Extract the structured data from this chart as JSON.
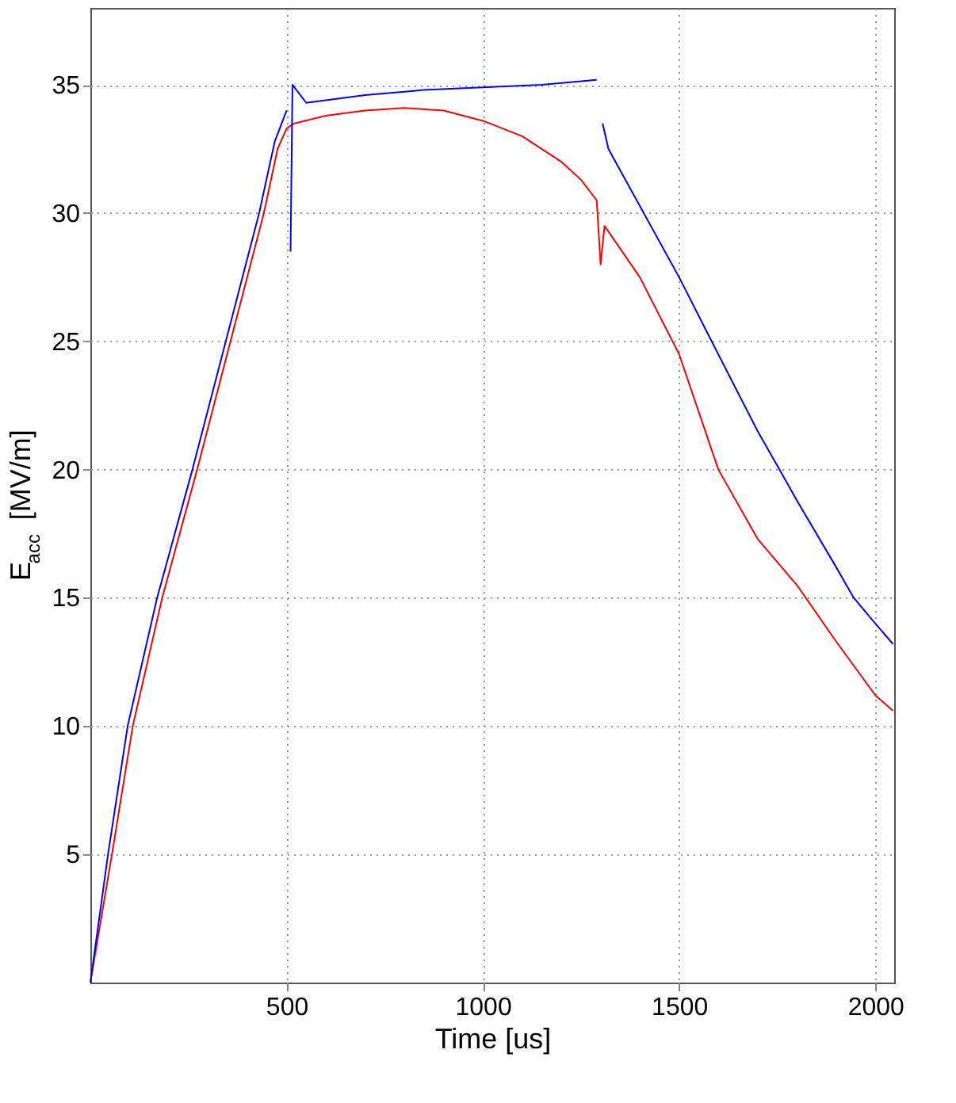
{
  "chart_data": {
    "type": "line",
    "xlabel": "Time [us]",
    "ylabel": "E$_{acc}$ [MV/m]",
    "xlim": [
      0,
      2048
    ],
    "ylim": [
      0,
      38
    ],
    "xticks": [
      500,
      1000,
      1500,
      2000
    ],
    "yticks": [
      5,
      10,
      15,
      20,
      25,
      30,
      35
    ],
    "grid": true,
    "legend": false,
    "marker": "none",
    "line_style": "solid",
    "series": [
      {
        "color": "#ff0000",
        "x": [
          0,
          55,
          108,
          183,
          272,
          357,
          442,
          477,
          500,
          520,
          600,
          700,
          800,
          900,
          1000,
          1100,
          1200,
          1250,
          1290,
          1300,
          1310,
          1400,
          1500,
          1600,
          1700,
          1800,
          1900,
          2000,
          2045
        ],
        "values": [
          0,
          5,
          10,
          15,
          20,
          25,
          30,
          32.5,
          33.3,
          33.5,
          33.8,
          34.0,
          34.1,
          34.0,
          33.6,
          33.0,
          32.0,
          31.3,
          30.5,
          28,
          29.5,
          27.5,
          24.5,
          20,
          17.3,
          15.5,
          13.3,
          11.2,
          10.6
        ]
      },
      {
        "color": "#0000ff",
        "x": [
          0,
          45,
          95,
          170,
          260,
          345,
          430,
          470,
          500,
          505,
          510,
          515,
          550,
          700,
          850,
          1000,
          1150,
          1290,
          1300,
          1305,
          1320,
          1410,
          1500,
          1583,
          1700,
          1756,
          1800,
          1900,
          1945,
          2000,
          2045
        ],
        "values": [
          0,
          5,
          10,
          15,
          20,
          25,
          30,
          32.8,
          34,
          null,
          28.5,
          35,
          34.3,
          34.6,
          34.8,
          34.9,
          35.0,
          35.2,
          null,
          33.5,
          32.5,
          30,
          27.5,
          25,
          21.5,
          20,
          18.8,
          16.2,
          15,
          14,
          13.2
        ]
      }
    ]
  }
}
